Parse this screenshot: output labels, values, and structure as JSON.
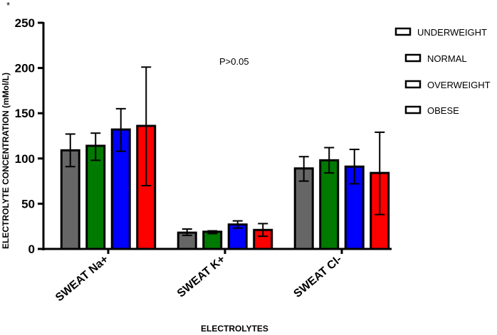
{
  "chart_data": {
    "type": "bar",
    "title": "",
    "corner_mark": "*",
    "annotation": "P>0.05",
    "xlabel": "ELECTROLYTES",
    "ylabel": "ELECTROLYTE CONCENTRATION (mMol/L)",
    "ylim": [
      0,
      250
    ],
    "yticks": [
      "0",
      "50",
      "100",
      "150",
      "200",
      "250"
    ],
    "ytick_values": [
      0,
      50,
      100,
      150,
      200,
      250
    ],
    "categories": [
      "SWEAT Na+",
      "SWEAT K+",
      "SWEAT Cl-"
    ],
    "legend_position": "top-right",
    "series": [
      {
        "name": "UNDERWEIGHT",
        "color": "#666666",
        "values": [
          109,
          18,
          89
        ],
        "err_low": [
          91,
          15,
          75
        ],
        "err_high": [
          127,
          22,
          102
        ]
      },
      {
        "name": "NORMAL",
        "color": "#007a00",
        "values": [
          114,
          19,
          98
        ],
        "err_low": [
          98,
          17,
          84
        ],
        "err_high": [
          128,
          20,
          112
        ]
      },
      {
        "name": "OVERWEIGHT",
        "color": "#0000ff",
        "values": [
          132,
          27,
          91
        ],
        "err_low": [
          108,
          23,
          72
        ],
        "err_high": [
          155,
          31,
          110
        ]
      },
      {
        "name": "OBESE",
        "color": "#ff0000",
        "values": [
          136,
          21,
          84
        ],
        "err_low": [
          70,
          14,
          38
        ],
        "err_high": [
          201,
          28,
          129
        ]
      }
    ]
  }
}
